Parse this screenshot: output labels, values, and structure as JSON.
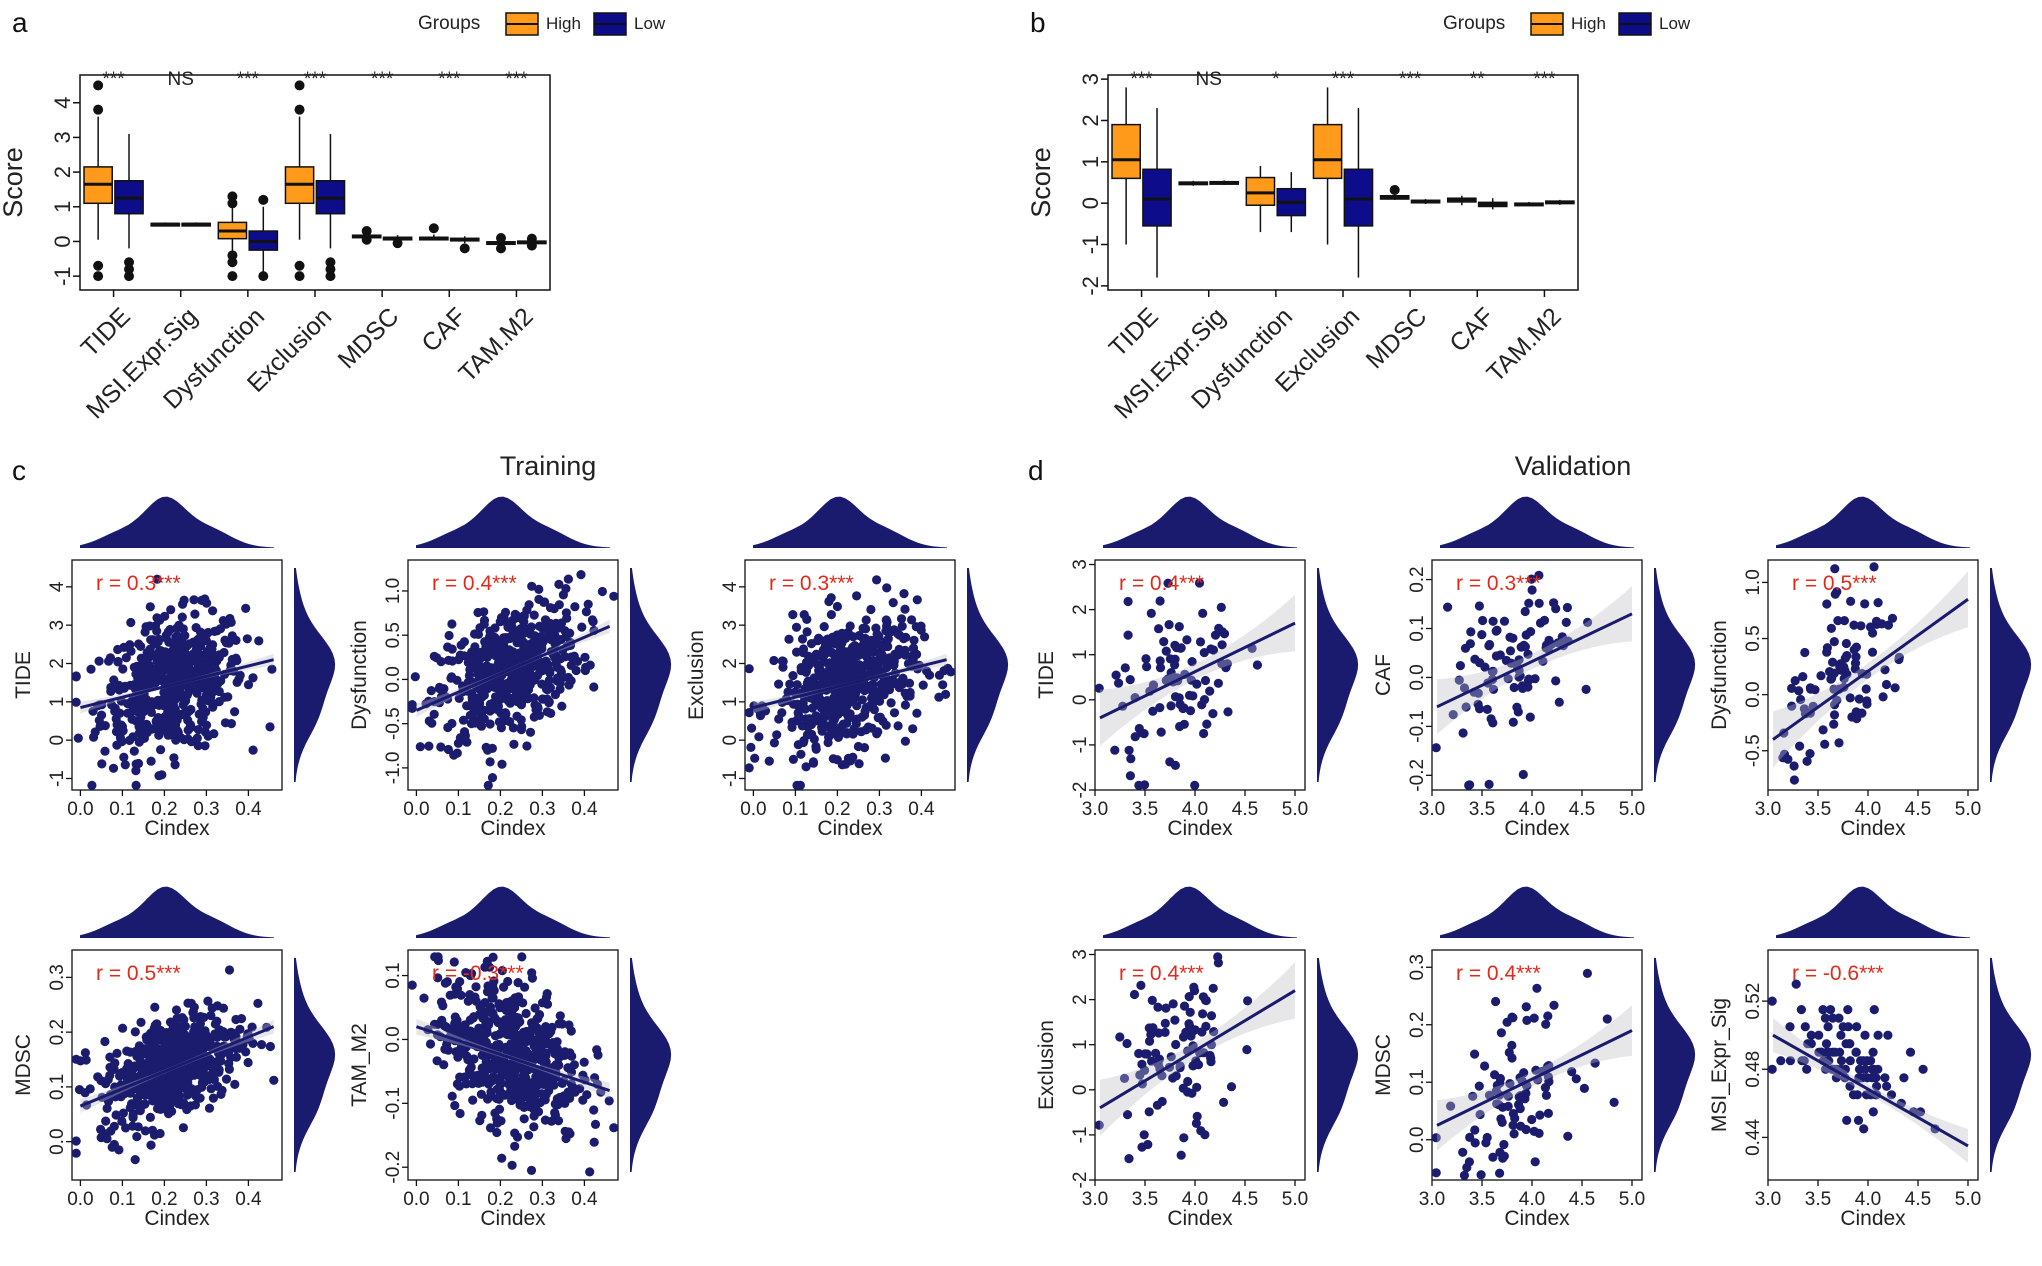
{
  "colors": {
    "high": "#FF9A1A",
    "low": "#0D0D8C",
    "scatter": "#1C1C6E",
    "sig": "#E32A1A",
    "band": "#D4D4D8"
  },
  "chart_data": [
    {
      "type": "box",
      "panel_label": "a",
      "legend": {
        "title": "Groups",
        "items": [
          "High",
          "Low"
        ],
        "placement": "top-center"
      },
      "categories": [
        "TIDE",
        "MSI.Expr.Sig",
        "Dysfunction",
        "Exclusion",
        "MDSC",
        "CAF",
        "TAM.M2"
      ],
      "significance": [
        "***",
        "NS",
        "***",
        "***",
        "***",
        "***",
        "***"
      ],
      "ylabel": "Score",
      "ylim": [
        -1.4,
        4.8
      ],
      "yticks": [
        -1,
        0,
        1,
        2,
        3,
        4
      ],
      "series": [
        {
          "name": "High",
          "boxes": [
            {
              "min": 0.05,
              "q1": 1.1,
              "med": 1.65,
              "q3": 2.15,
              "max": 3.6,
              "out": [
                4.5,
                3.8,
                -0.7,
                -1.0
              ]
            },
            {
              "min": 0.45,
              "q1": 0.47,
              "med": 0.5,
              "q3": 0.52,
              "max": 0.55,
              "out": []
            },
            {
              "min": -0.3,
              "q1": 0.08,
              "med": 0.3,
              "q3": 0.55,
              "max": 1.0,
              "out": [
                1.3,
                1.1,
                -0.4,
                -0.6,
                -1.0
              ]
            },
            {
              "min": 0.05,
              "q1": 1.1,
              "med": 1.65,
              "q3": 2.15,
              "max": 3.6,
              "out": [
                4.5,
                3.8,
                -0.7,
                -1.0
              ]
            },
            {
              "min": 0.08,
              "q1": 0.12,
              "med": 0.15,
              "q3": 0.18,
              "max": 0.25,
              "out": [
                0.3,
                0.05
              ]
            },
            {
              "min": 0.05,
              "q1": 0.08,
              "med": 0.1,
              "q3": 0.12,
              "max": 0.2,
              "out": [
                0.38
              ]
            },
            {
              "min": -0.12,
              "q1": -0.07,
              "med": -0.04,
              "q3": -0.01,
              "max": 0.03,
              "out": [
                -0.2,
                0.1
              ]
            }
          ]
        },
        {
          "name": "Low",
          "boxes": [
            {
              "min": -0.2,
              "q1": 0.8,
              "med": 1.25,
              "q3": 1.75,
              "max": 3.1,
              "out": [
                -0.6,
                -0.8,
                -1.0
              ]
            },
            {
              "min": 0.45,
              "q1": 0.47,
              "med": 0.5,
              "q3": 0.52,
              "max": 0.55,
              "out": []
            },
            {
              "min": -0.9,
              "q1": -0.25,
              "med": 0.0,
              "q3": 0.3,
              "max": 1.0,
              "out": [
                1.2,
                -1.0
              ]
            },
            {
              "min": -0.2,
              "q1": 0.8,
              "med": 1.25,
              "q3": 1.75,
              "max": 3.1,
              "out": [
                -0.6,
                -0.8,
                -1.0
              ]
            },
            {
              "min": 0.05,
              "q1": 0.08,
              "med": 0.1,
              "q3": 0.12,
              "max": 0.18,
              "out": [
                -0.05
              ]
            },
            {
              "min": -0.05,
              "q1": 0.02,
              "med": 0.06,
              "q3": 0.09,
              "max": 0.15,
              "out": [
                -0.2
              ]
            },
            {
              "min": -0.1,
              "q1": -0.05,
              "med": -0.02,
              "q3": 0.01,
              "max": 0.05,
              "out": [
                0.08,
                -0.12
              ]
            }
          ]
        }
      ]
    },
    {
      "type": "box",
      "panel_label": "b",
      "legend": {
        "title": "Groups",
        "items": [
          "High",
          "Low"
        ],
        "placement": "top-center"
      },
      "categories": [
        "TIDE",
        "MSI.Expr.Sig",
        "Dysfunction",
        "Exclusion",
        "MDSC",
        "CAF",
        "TAM.M2"
      ],
      "significance": [
        "***",
        "NS",
        "*",
        "***",
        "***",
        "**",
        "***"
      ],
      "ylabel": "Score",
      "ylim": [
        -2.1,
        3.1
      ],
      "yticks": [
        -2,
        -1,
        0,
        1,
        2,
        3
      ],
      "series": [
        {
          "name": "High",
          "boxes": [
            {
              "min": -1.0,
              "q1": 0.6,
              "med": 1.05,
              "q3": 1.9,
              "max": 2.8,
              "out": []
            },
            {
              "min": 0.42,
              "q1": 0.45,
              "med": 0.48,
              "q3": 0.51,
              "max": 0.54,
              "out": []
            },
            {
              "min": -0.7,
              "q1": -0.05,
              "med": 0.25,
              "q3": 0.62,
              "max": 0.9,
              "out": []
            },
            {
              "min": -1.0,
              "q1": 0.6,
              "med": 1.05,
              "q3": 1.9,
              "max": 2.8,
              "out": []
            },
            {
              "min": 0.08,
              "q1": 0.1,
              "med": 0.14,
              "q3": 0.18,
              "max": 0.22,
              "out": [
                0.32
              ]
            },
            {
              "min": -0.05,
              "q1": 0.03,
              "med": 0.08,
              "q3": 0.12,
              "max": 0.18,
              "out": []
            },
            {
              "min": -0.07,
              "q1": -0.04,
              "med": -0.02,
              "q3": 0.0,
              "max": 0.03,
              "out": []
            }
          ]
        },
        {
          "name": "Low",
          "boxes": [
            {
              "min": -1.8,
              "q1": -0.55,
              "med": 0.1,
              "q3": 0.82,
              "max": 2.3,
              "out": []
            },
            {
              "min": 0.44,
              "q1": 0.46,
              "med": 0.49,
              "q3": 0.52,
              "max": 0.55,
              "out": []
            },
            {
              "min": -0.7,
              "q1": -0.3,
              "med": 0.02,
              "q3": 0.35,
              "max": 0.75,
              "out": []
            },
            {
              "min": -1.8,
              "q1": -0.55,
              "med": 0.1,
              "q3": 0.82,
              "max": 2.3,
              "out": []
            },
            {
              "min": -0.02,
              "q1": 0.01,
              "med": 0.04,
              "q3": 0.07,
              "max": 0.1,
              "out": []
            },
            {
              "min": -0.15,
              "q1": -0.08,
              "med": -0.03,
              "q3": 0.02,
              "max": 0.12,
              "out": []
            },
            {
              "min": -0.04,
              "q1": -0.01,
              "med": 0.02,
              "q3": 0.05,
              "max": 0.08,
              "out": []
            }
          ]
        }
      ]
    },
    {
      "type": "scatter",
      "panel_label": "c",
      "title": "Training",
      "plots": [
        {
          "ylabel": "TIDE",
          "xlabel": "Cindex",
          "annotation": "r = 0.3***",
          "xlim": [
            -0.02,
            0.48
          ],
          "ylim": [
            -1.3,
            4.7
          ],
          "xticks": [
            0.0,
            0.1,
            0.2,
            0.3,
            0.4
          ],
          "yticks": [
            -1,
            0,
            1,
            2,
            3,
            4
          ],
          "fit": [
            0.0,
            0.85,
            0.46,
            2.1
          ],
          "n": 520,
          "xmu": 0.22,
          "xsd": 0.085,
          "ymu": 1.45,
          "ysd": 0.9,
          "band": 0.12
        },
        {
          "ylabel": "Dysfunction",
          "xlabel": "Cindex",
          "annotation": "r = 0.4***",
          "xlim": [
            -0.02,
            0.48
          ],
          "ylim": [
            -1.25,
            1.35
          ],
          "xticks": [
            0.0,
            0.1,
            0.2,
            0.3,
            0.4
          ],
          "yticks": [
            -1.0,
            -0.5,
            0.0,
            0.5,
            1.0
          ],
          "yfmt": 1,
          "fit": [
            0.0,
            -0.35,
            0.46,
            0.6
          ],
          "n": 520,
          "xmu": 0.22,
          "xsd": 0.085,
          "ymu": 0.1,
          "ysd": 0.4,
          "band": 0.06
        },
        {
          "ylabel": "Exclusion",
          "xlabel": "Cindex",
          "annotation": "r = 0.3***",
          "xlim": [
            -0.02,
            0.48
          ],
          "ylim": [
            -1.3,
            4.7
          ],
          "xticks": [
            0.0,
            0.1,
            0.2,
            0.3,
            0.4
          ],
          "yticks": [
            -1,
            0,
            1,
            2,
            3,
            4
          ],
          "fit": [
            0.0,
            0.85,
            0.46,
            2.1
          ],
          "n": 520,
          "xmu": 0.22,
          "xsd": 0.085,
          "ymu": 1.45,
          "ysd": 0.9,
          "band": 0.12
        },
        {
          "ylabel": "MDSC",
          "xlabel": "Cindex",
          "annotation": "r = 0.5***",
          "xlim": [
            -0.02,
            0.48
          ],
          "ylim": [
            -0.07,
            0.35
          ],
          "xticks": [
            0.0,
            0.1,
            0.2,
            0.3,
            0.4
          ],
          "yticks": [
            0.0,
            0.1,
            0.2,
            0.3
          ],
          "yfmt": 1,
          "fit": [
            0.0,
            0.065,
            0.46,
            0.21
          ],
          "n": 520,
          "xmu": 0.22,
          "xsd": 0.085,
          "ymu": 0.14,
          "ysd": 0.055,
          "band": 0.01
        },
        {
          "ylabel": "TAM_M2",
          "xlabel": "Cindex",
          "annotation": "r = -0.3***",
          "xlim": [
            -0.02,
            0.48
          ],
          "ylim": [
            -0.22,
            0.14
          ],
          "xticks": [
            0.0,
            0.1,
            0.2,
            0.3,
            0.4
          ],
          "yticks": [
            -0.2,
            -0.1,
            0.0,
            0.1
          ],
          "yfmt": 1,
          "fit": [
            0.0,
            0.02,
            0.46,
            -0.08
          ],
          "n": 520,
          "xmu": 0.22,
          "xsd": 0.085,
          "ymu": -0.02,
          "ysd": 0.06,
          "band": 0.01
        }
      ]
    },
    {
      "type": "scatter",
      "panel_label": "d",
      "title": "Validation",
      "plots": [
        {
          "ylabel": "TIDE",
          "xlabel": "Cindex",
          "annotation": "r = 0.4***",
          "xlim": [
            3.0,
            5.1
          ],
          "ylim": [
            -2.0,
            3.1
          ],
          "xticks": [
            3.0,
            3.5,
            4.0,
            4.5,
            5.0
          ],
          "yticks": [
            -2,
            -1,
            0,
            1,
            2,
            3
          ],
          "xfmt": 1,
          "fit": [
            3.05,
            -0.4,
            5.0,
            1.7
          ],
          "n": 95,
          "xmu": 3.8,
          "xsd": 0.32,
          "ymu": 0.5,
          "ysd": 1.1,
          "band": 0.5
        },
        {
          "ylabel": "CAF",
          "xlabel": "Cindex",
          "annotation": "r = 0.3***",
          "xlim": [
            3.0,
            5.1
          ],
          "ylim": [
            -0.23,
            0.24
          ],
          "xticks": [
            3.0,
            3.5,
            4.0,
            4.5,
            5.0
          ],
          "yticks": [
            -0.2,
            -0.1,
            0.0,
            0.1,
            0.2
          ],
          "xfmt": 1,
          "yfmt": 1,
          "fit": [
            3.05,
            -0.06,
            5.0,
            0.13
          ],
          "n": 95,
          "xmu": 3.8,
          "xsd": 0.32,
          "ymu": 0.02,
          "ysd": 0.09,
          "band": 0.045
        },
        {
          "ylabel": "Dysfunction",
          "xlabel": "Cindex",
          "annotation": "r = 0.5***",
          "xlim": [
            3.0,
            5.1
          ],
          "ylim": [
            -0.85,
            1.2
          ],
          "xticks": [
            3.0,
            3.5,
            4.0,
            4.5,
            5.0
          ],
          "yticks": [
            -0.5,
            0.0,
            0.5,
            1.0
          ],
          "xfmt": 1,
          "yfmt": 1,
          "fit": [
            3.05,
            -0.4,
            5.0,
            0.85
          ],
          "n": 95,
          "xmu": 3.8,
          "xsd": 0.32,
          "ymu": 0.15,
          "ysd": 0.38,
          "band": 0.2
        },
        {
          "ylabel": "Exclusion",
          "xlabel": "Cindex",
          "annotation": "r = 0.4***",
          "xlim": [
            3.0,
            5.1
          ],
          "ylim": [
            -2.0,
            3.1
          ],
          "xticks": [
            3.0,
            3.5,
            4.0,
            4.5,
            5.0
          ],
          "yticks": [
            -2,
            -1,
            0,
            1,
            2,
            3
          ],
          "xfmt": 1,
          "fit": [
            3.05,
            -0.4,
            5.0,
            2.2
          ],
          "n": 95,
          "xmu": 3.8,
          "xsd": 0.32,
          "ymu": 0.6,
          "ysd": 1.1,
          "band": 0.5
        },
        {
          "ylabel": "MDSC",
          "xlabel": "Cindex",
          "annotation": "r = 0.4***",
          "xlim": [
            3.0,
            5.1
          ],
          "ylim": [
            -0.07,
            0.33
          ],
          "xticks": [
            3.0,
            3.5,
            4.0,
            4.5,
            5.0
          ],
          "yticks": [
            0.0,
            0.1,
            0.2,
            0.3
          ],
          "xfmt": 1,
          "yfmt": 1,
          "fit": [
            3.05,
            0.025,
            5.0,
            0.19
          ],
          "n": 95,
          "xmu": 3.8,
          "xsd": 0.32,
          "ymu": 0.09,
          "ysd": 0.07,
          "band": 0.035
        },
        {
          "ylabel": "MSI_Expr_Sig",
          "xlabel": "Cindex",
          "annotation": "r = -0.6***",
          "xlim": [
            3.0,
            5.1
          ],
          "ylim": [
            0.415,
            0.55
          ],
          "xticks": [
            3.0,
            3.5,
            4.0,
            4.5,
            5.0
          ],
          "yticks": [
            0.44,
            0.48,
            0.52
          ],
          "xfmt": 1,
          "yfmt": 2,
          "fit": [
            3.05,
            0.5,
            5.0,
            0.435
          ],
          "n": 95,
          "xmu": 3.8,
          "xsd": 0.32,
          "ymu": 0.485,
          "ysd": 0.018,
          "band": 0.008,
          "quant": 0.005
        }
      ]
    }
  ]
}
